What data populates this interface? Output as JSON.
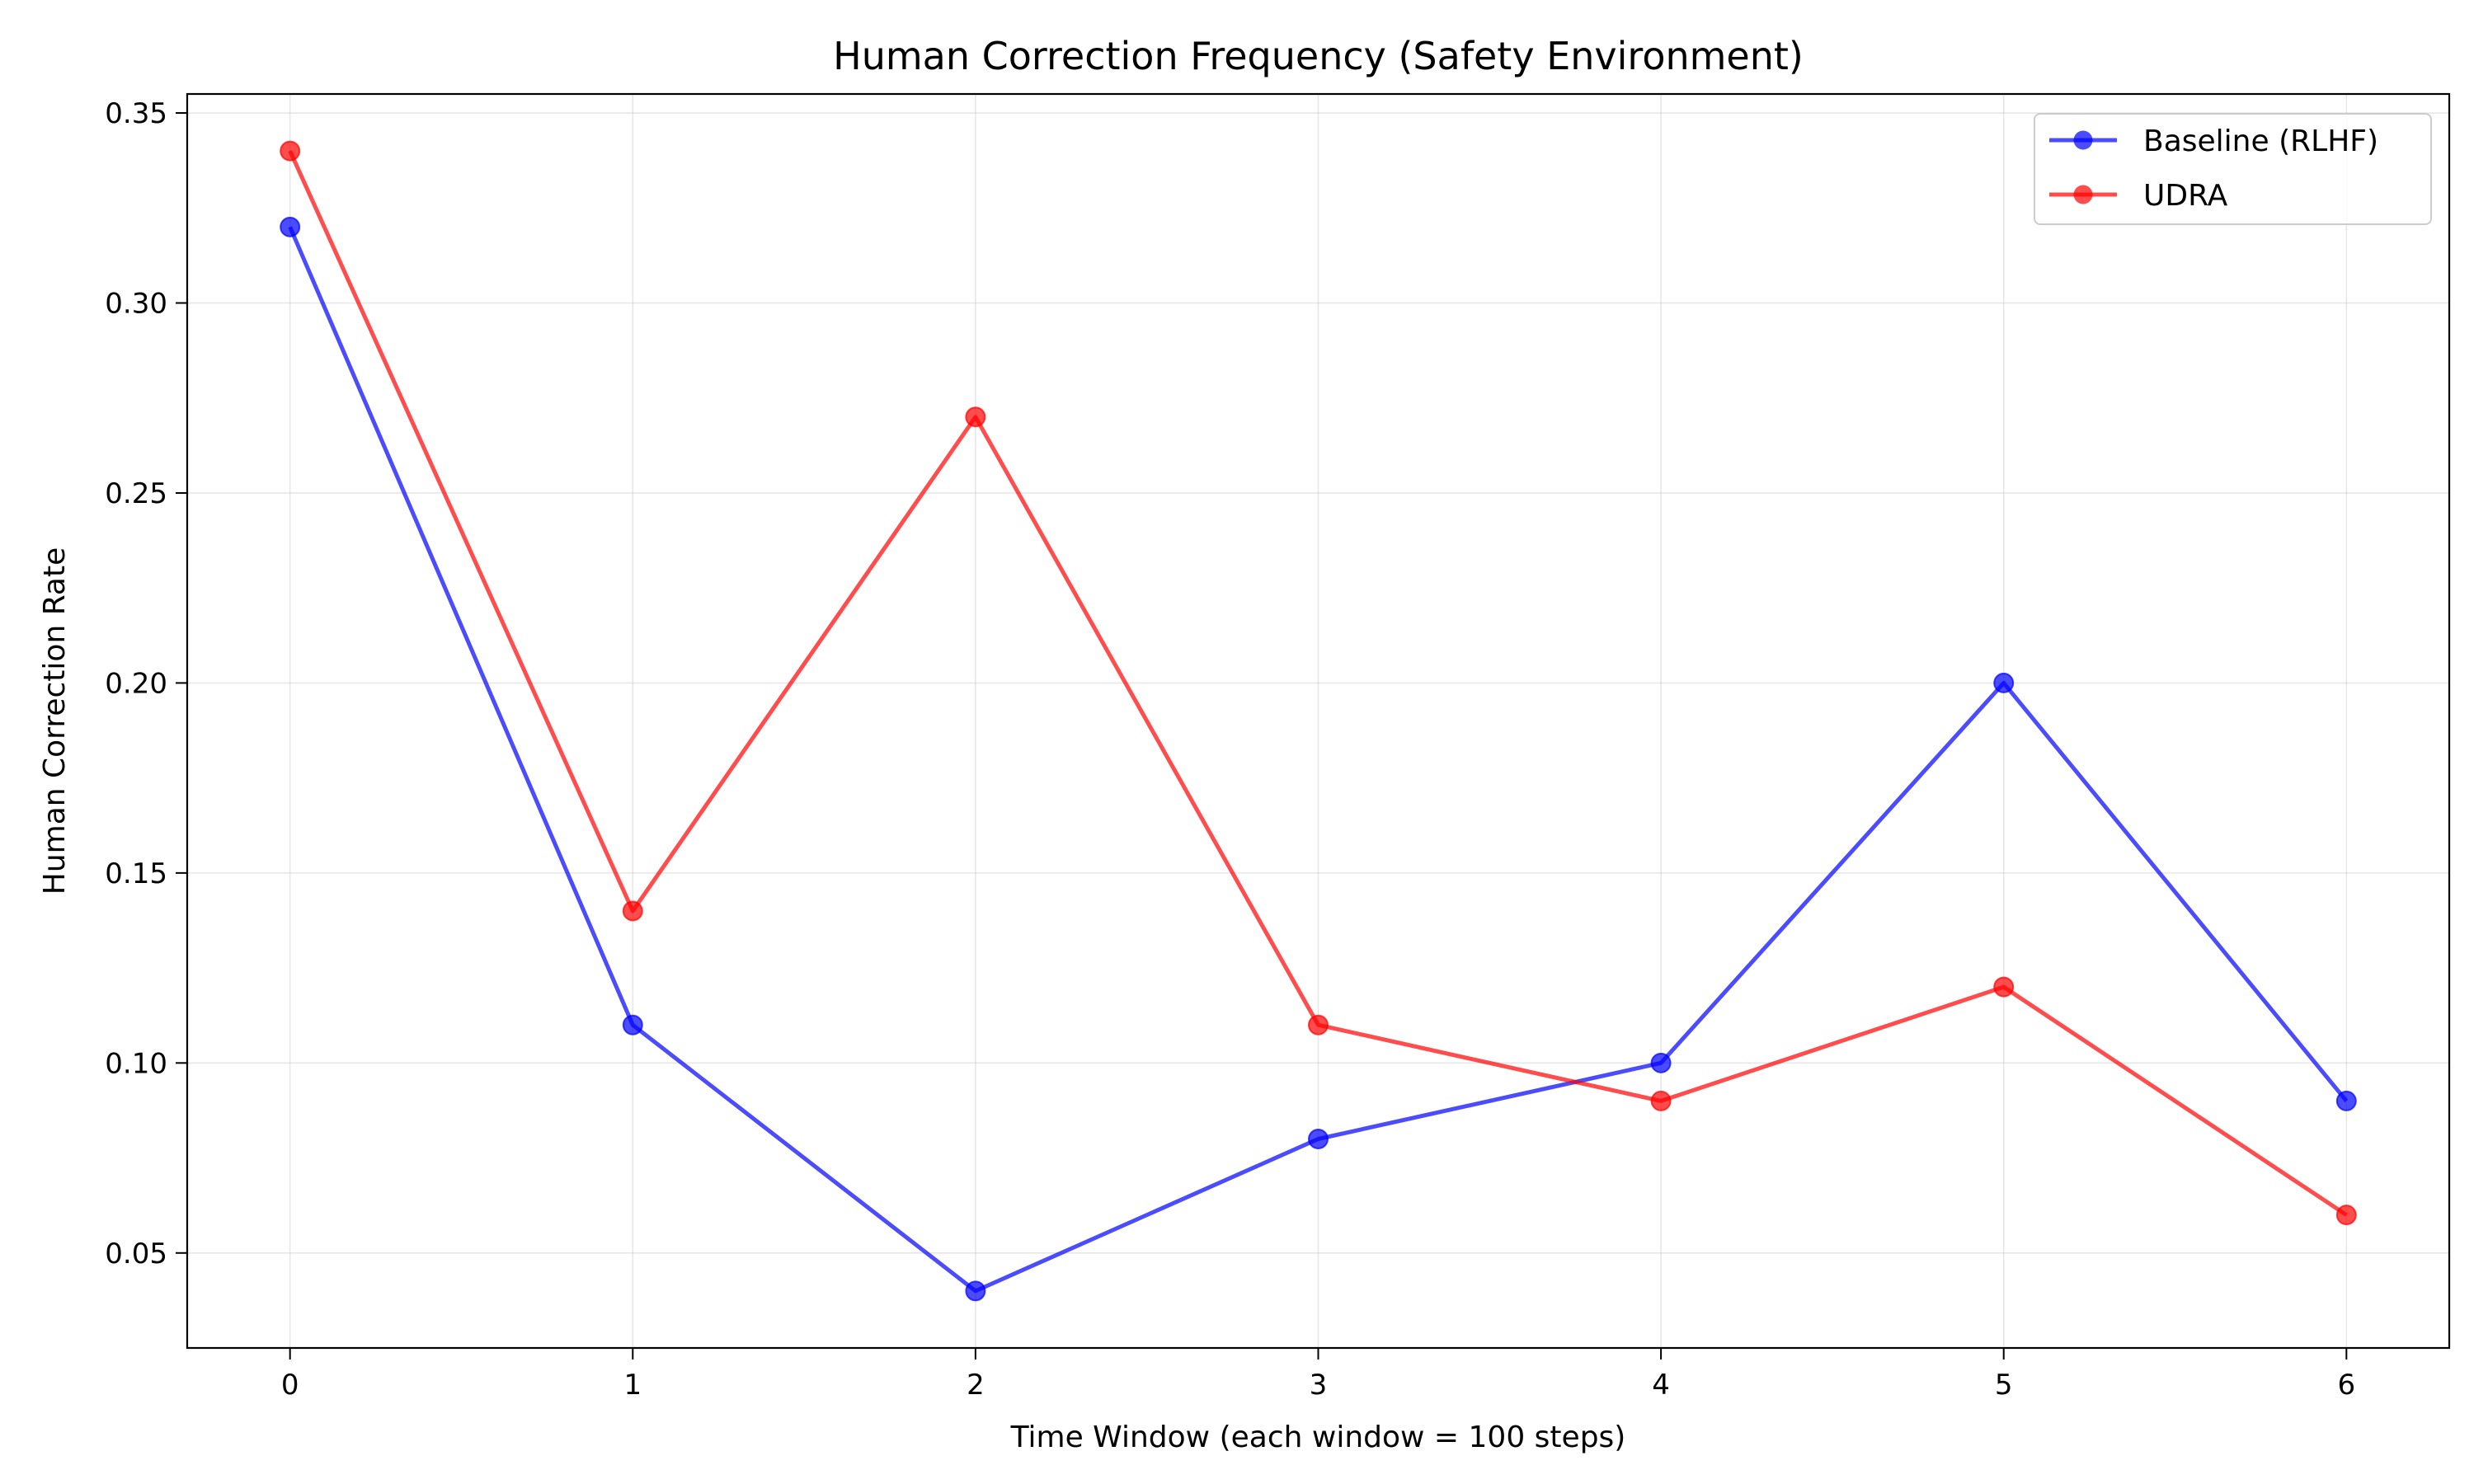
{
  "chart_data": {
    "type": "line",
    "title": "Human Correction Frequency (Safety Environment)",
    "xlabel": "Time Window (each window = 100 steps)",
    "ylabel": "Human Correction Rate",
    "x": [
      0,
      1,
      2,
      3,
      4,
      5,
      6
    ],
    "xlim": [
      -0.3,
      6.3
    ],
    "ylim": [
      0.025,
      0.355
    ],
    "xticks": [
      "0",
      "1",
      "2",
      "3",
      "4",
      "5",
      "6"
    ],
    "yticks": [
      "0.05",
      "0.10",
      "0.15",
      "0.20",
      "0.25",
      "0.30",
      "0.35"
    ],
    "grid": true,
    "legend_position": "top-right",
    "series": [
      {
        "name": "Baseline (RLHF)",
        "color": "#0000ff",
        "values": [
          0.32,
          0.11,
          0.04,
          0.08,
          0.1,
          0.2,
          0.09
        ]
      },
      {
        "name": "UDRA",
        "color": "#ff0000",
        "values": [
          0.34,
          0.14,
          0.27,
          0.11,
          0.09,
          0.12,
          0.06
        ]
      }
    ]
  }
}
